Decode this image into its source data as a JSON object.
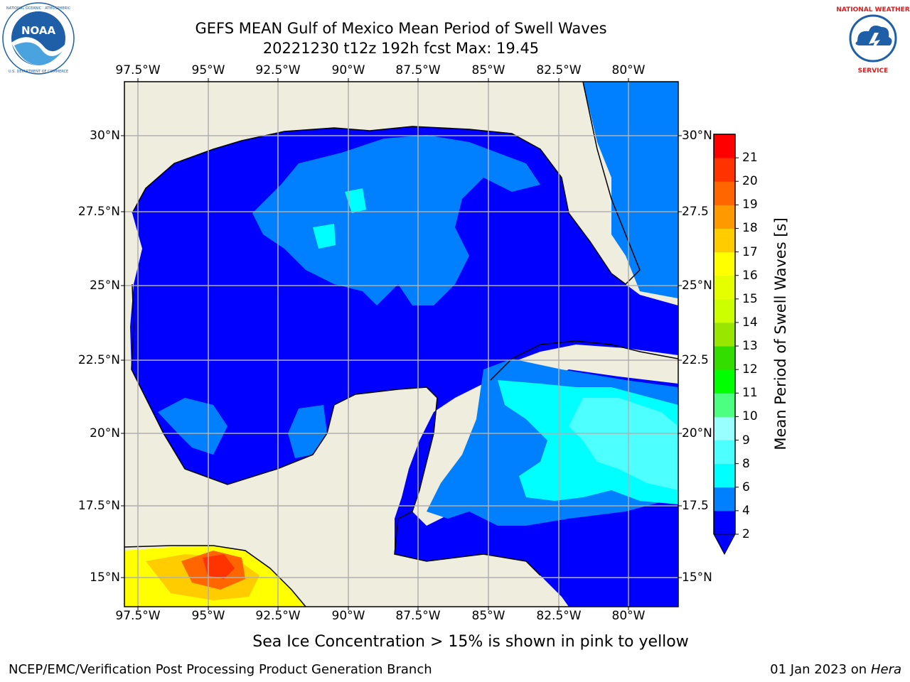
{
  "header": {
    "title_line1": "GEFS MEAN Gulf of Mexico Mean Period of Swell Waves",
    "title_line2": "20221230 t12z 192h fcst   Max: 19.45"
  },
  "logos": {
    "left": {
      "name": "NOAA",
      "ring_text": "NATIONAL OCEANIC AND ATMOSPHERIC ADMINISTRATION · U.S. DEPARTMENT OF COMMERCE",
      "color": "#1f5fa8"
    },
    "right": {
      "ring_text": "NATIONAL WEATHER SERVICE",
      "color": "#d62020"
    }
  },
  "map": {
    "lon_ticks": [
      "97.5°W",
      "95°W",
      "92.5°W",
      "90°W",
      "87.5°W",
      "85°W",
      "82.5°W",
      "80°W"
    ],
    "lat_ticks_left": [
      "30°N",
      "27.5°N",
      "25°N",
      "22.5°N",
      "20°N",
      "17.5°N",
      "15°N"
    ],
    "lat_ticks_right": [
      "30°N",
      "27.5",
      "25°N",
      "22.5",
      "20°N",
      "17.5",
      "15°N"
    ],
    "land_color": "#efedde",
    "grid": true
  },
  "colorbar": {
    "label": "Mean Period of Swell Waves [s]",
    "ticks": [
      "2",
      "4",
      "6",
      "8",
      "9",
      "10",
      "11",
      "12",
      "13",
      "14",
      "15",
      "16",
      "17",
      "18",
      "19",
      "20",
      "21"
    ],
    "colors": [
      "#0000ff",
      "#0080ff",
      "#00ffff",
      "#4dffff",
      "#99ffff",
      "#4dff80",
      "#00ff00",
      "#33dd00",
      "#99e600",
      "#ccff00",
      "#e6ff00",
      "#ffff00",
      "#ffcc00",
      "#ff9900",
      "#ff6600",
      "#ff3300",
      "#ff0000"
    ],
    "extend": "min"
  },
  "caption": "Sea Ice Concentration > 15% is shown in pink to yellow",
  "footer": {
    "left": "NCEP/EMC/Verification Post Processing Product Generation Branch",
    "date": "01 Jan 2023 on ",
    "host": "Hera"
  }
}
